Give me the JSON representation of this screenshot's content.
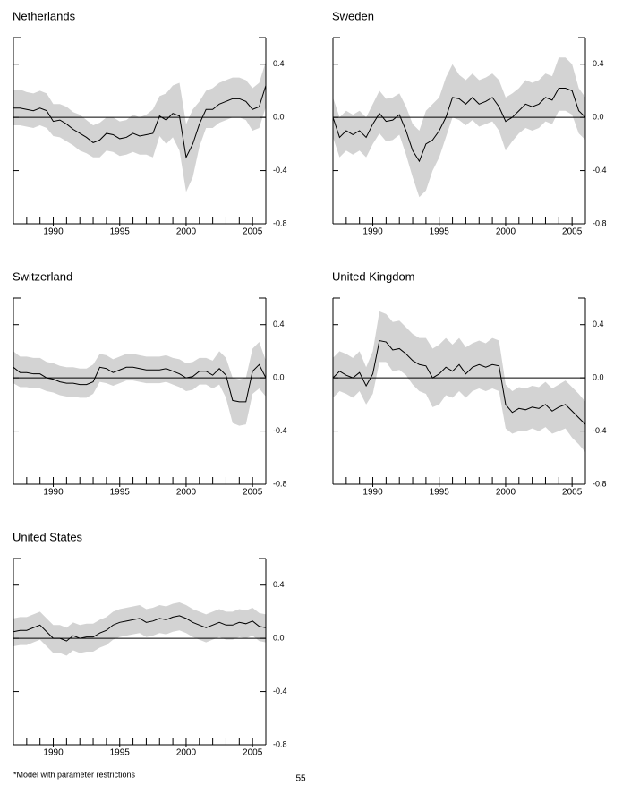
{
  "chart_data": [
    {
      "type": "line",
      "title": "Netherlands",
      "x": [
        1987,
        1987.5,
        1988,
        1988.5,
        1989,
        1989.5,
        1990,
        1990.5,
        1991,
        1991.5,
        1992,
        1992.5,
        1993,
        1993.5,
        1994,
        1994.5,
        1995,
        1995.5,
        1996,
        1996.5,
        1997,
        1997.5,
        1998,
        1998.5,
        1999,
        1999.5,
        2000,
        2000.5,
        2001,
        2001.5,
        2002,
        2002.5,
        2003,
        2003.5,
        2004,
        2004.5,
        2005,
        2005.5,
        2006
      ],
      "series": [
        {
          "color": "#000000",
          "values": [
            0.07,
            0.07,
            0.06,
            0.05,
            0.07,
            0.05,
            -0.03,
            -0.02,
            -0.05,
            -0.09,
            -0.12,
            -0.15,
            -0.19,
            -0.17,
            -0.12,
            -0.13,
            -0.16,
            -0.15,
            -0.12,
            -0.14,
            -0.13,
            -0.12,
            0.01,
            -0.02,
            0.03,
            0.01,
            -0.3,
            -0.2,
            -0.05,
            0.06,
            0.06,
            0.1,
            0.12,
            0.14,
            0.14,
            0.12,
            0.06,
            0.08,
            0.24
          ]
        }
      ],
      "band": {
        "color": "#d3d3d3",
        "lower": [
          -0.06,
          -0.06,
          -0.07,
          -0.08,
          -0.06,
          -0.08,
          -0.14,
          -0.15,
          -0.18,
          -0.21,
          -0.25,
          -0.27,
          -0.3,
          -0.3,
          -0.25,
          -0.26,
          -0.29,
          -0.28,
          -0.26,
          -0.28,
          -0.28,
          -0.3,
          -0.14,
          -0.2,
          -0.15,
          -0.25,
          -0.56,
          -0.45,
          -0.22,
          -0.08,
          -0.08,
          -0.04,
          -0.02,
          0.0,
          0.0,
          -0.02,
          -0.1,
          -0.08,
          0.08
        ],
        "upper": [
          0.21,
          0.21,
          0.19,
          0.18,
          0.2,
          0.18,
          0.1,
          0.1,
          0.08,
          0.04,
          0.02,
          -0.02,
          -0.06,
          -0.04,
          0.0,
          0.0,
          -0.03,
          -0.02,
          0.02,
          0.0,
          0.02,
          0.06,
          0.16,
          0.18,
          0.24,
          0.26,
          -0.05,
          0.06,
          0.12,
          0.2,
          0.22,
          0.26,
          0.28,
          0.3,
          0.3,
          0.28,
          0.22,
          0.26,
          0.42
        ]
      },
      "xlim": [
        1987,
        2006
      ],
      "xticks": [
        1990,
        1995,
        2000,
        2005
      ],
      "xminorticks": [
        1988,
        1989,
        1990,
        1991,
        1992,
        1993,
        1994,
        1995,
        1996,
        1997,
        1998,
        1999,
        2000,
        2001,
        2002,
        2003,
        2004,
        2005
      ],
      "ylim": [
        -0.8,
        0.6
      ],
      "yticks": [
        {
          "value": -0.8,
          "label": "-0.8"
        },
        {
          "value": -0.4,
          "label": "-0.4"
        },
        {
          "value": 0,
          "label": "0.0"
        },
        {
          "value": 0.4,
          "label": "0.4"
        }
      ],
      "zero_line": 0
    },
    {
      "type": "line",
      "title": "Sweden",
      "x": [
        1987,
        1987.5,
        1988,
        1988.5,
        1989,
        1989.5,
        1990,
        1990.5,
        1991,
        1991.5,
        1992,
        1992.5,
        1993,
        1993.5,
        1994,
        1994.5,
        1995,
        1995.5,
        1996,
        1996.5,
        1997,
        1997.5,
        1998,
        1998.5,
        1999,
        1999.5,
        2000,
        2000.5,
        2001,
        2001.5,
        2002,
        2002.5,
        2003,
        2003.5,
        2004,
        2004.5,
        2005,
        2005.5,
        2006
      ],
      "series": [
        {
          "color": "#000000",
          "values": [
            0.0,
            -0.15,
            -0.1,
            -0.13,
            -0.1,
            -0.15,
            -0.05,
            0.03,
            -0.03,
            -0.02,
            0.02,
            -0.1,
            -0.25,
            -0.33,
            -0.2,
            -0.17,
            -0.1,
            0.0,
            0.15,
            0.14,
            0.1,
            0.15,
            0.1,
            0.12,
            0.15,
            0.08,
            -0.03,
            0.0,
            0.05,
            0.1,
            0.08,
            0.1,
            0.15,
            0.13,
            0.22,
            0.22,
            0.2,
            0.05,
            0.0
          ]
        }
      ],
      "band": {
        "color": "#d3d3d3",
        "lower": [
          -0.15,
          -0.3,
          -0.25,
          -0.28,
          -0.25,
          -0.3,
          -0.2,
          -0.12,
          -0.18,
          -0.17,
          -0.13,
          -0.28,
          -0.45,
          -0.6,
          -0.55,
          -0.4,
          -0.3,
          -0.15,
          0.0,
          -0.02,
          -0.06,
          -0.02,
          -0.07,
          -0.05,
          -0.03,
          -0.1,
          -0.25,
          -0.18,
          -0.12,
          -0.08,
          -0.1,
          -0.08,
          -0.03,
          -0.05,
          0.05,
          0.05,
          0.02,
          -0.12,
          -0.17
        ],
        "upper": [
          0.15,
          0.0,
          0.05,
          0.02,
          0.05,
          0.0,
          0.1,
          0.2,
          0.14,
          0.15,
          0.18,
          0.08,
          -0.05,
          -0.1,
          0.05,
          0.1,
          0.15,
          0.3,
          0.4,
          0.32,
          0.28,
          0.33,
          0.28,
          0.3,
          0.33,
          0.28,
          0.15,
          0.18,
          0.22,
          0.28,
          0.26,
          0.28,
          0.33,
          0.31,
          0.45,
          0.45,
          0.4,
          0.22,
          0.15
        ]
      },
      "xlim": [
        1987,
        2006
      ],
      "xticks": [
        1990,
        1995,
        2000,
        2005
      ],
      "xminorticks": [
        1988,
        1989,
        1990,
        1991,
        1992,
        1993,
        1994,
        1995,
        1996,
        1997,
        1998,
        1999,
        2000,
        2001,
        2002,
        2003,
        2004,
        2005
      ],
      "ylim": [
        -0.8,
        0.6
      ],
      "yticks": [
        {
          "value": -0.8,
          "label": "-0.8"
        },
        {
          "value": -0.4,
          "label": "-0.4"
        },
        {
          "value": 0,
          "label": "0.0"
        },
        {
          "value": 0.4,
          "label": "0.4"
        }
      ],
      "zero_line": 0
    },
    {
      "type": "line",
      "title": "Switzerland",
      "x": [
        1987,
        1987.5,
        1988,
        1988.5,
        1989,
        1989.5,
        1990,
        1990.5,
        1991,
        1991.5,
        1992,
        1992.5,
        1993,
        1993.5,
        1994,
        1994.5,
        1995,
        1995.5,
        1996,
        1996.5,
        1997,
        1997.5,
        1998,
        1998.5,
        1999,
        1999.5,
        2000,
        2000.5,
        2001,
        2001.5,
        2002,
        2002.5,
        2003,
        2003.5,
        2004,
        2004.5,
        2005,
        2005.5,
        2006
      ],
      "series": [
        {
          "color": "#000000",
          "values": [
            0.08,
            0.04,
            0.04,
            0.03,
            0.03,
            0.0,
            -0.01,
            -0.03,
            -0.04,
            -0.04,
            -0.05,
            -0.05,
            -0.03,
            0.08,
            0.07,
            0.04,
            0.06,
            0.08,
            0.08,
            0.07,
            0.06,
            0.06,
            0.06,
            0.07,
            0.05,
            0.03,
            0.0,
            0.01,
            0.05,
            0.05,
            0.02,
            0.07,
            0.02,
            -0.17,
            -0.18,
            -0.18,
            0.05,
            0.1,
            0.0
          ]
        }
      ],
      "band": {
        "color": "#d3d3d3",
        "lower": [
          -0.04,
          -0.07,
          -0.07,
          -0.08,
          -0.08,
          -0.1,
          -0.11,
          -0.13,
          -0.14,
          -0.14,
          -0.15,
          -0.15,
          -0.12,
          -0.03,
          -0.04,
          -0.06,
          -0.04,
          -0.02,
          -0.02,
          -0.03,
          -0.04,
          -0.04,
          -0.04,
          -0.03,
          -0.05,
          -0.07,
          -0.1,
          -0.09,
          -0.05,
          -0.05,
          -0.08,
          -0.05,
          -0.15,
          -0.34,
          -0.36,
          -0.35,
          -0.12,
          -0.08,
          -0.14
        ],
        "upper": [
          0.2,
          0.16,
          0.16,
          0.15,
          0.15,
          0.12,
          0.11,
          0.09,
          0.08,
          0.08,
          0.07,
          0.07,
          0.1,
          0.18,
          0.17,
          0.14,
          0.16,
          0.18,
          0.18,
          0.17,
          0.16,
          0.16,
          0.16,
          0.17,
          0.15,
          0.14,
          0.11,
          0.12,
          0.15,
          0.15,
          0.13,
          0.2,
          0.15,
          0.0,
          -0.01,
          0.0,
          0.22,
          0.27,
          0.13
        ]
      },
      "xlim": [
        1987,
        2006
      ],
      "xticks": [
        1990,
        1995,
        2000,
        2005
      ],
      "xminorticks": [
        1988,
        1989,
        1990,
        1991,
        1992,
        1993,
        1994,
        1995,
        1996,
        1997,
        1998,
        1999,
        2000,
        2001,
        2002,
        2003,
        2004,
        2005
      ],
      "ylim": [
        -0.8,
        0.6
      ],
      "yticks": [
        {
          "value": -0.8,
          "label": "-0.8"
        },
        {
          "value": -0.4,
          "label": "-0.4"
        },
        {
          "value": 0,
          "label": "0.0"
        },
        {
          "value": 0.4,
          "label": "0.4"
        }
      ],
      "zero_line": 0
    },
    {
      "type": "line",
      "title": "United Kingdom",
      "x": [
        1987,
        1987.5,
        1988,
        1988.5,
        1989,
        1989.5,
        1990,
        1990.5,
        1991,
        1991.5,
        1992,
        1992.5,
        1993,
        1993.5,
        1994,
        1994.5,
        1995,
        1995.5,
        1996,
        1996.5,
        1997,
        1997.5,
        1998,
        1998.5,
        1999,
        1999.5,
        2000,
        2000.5,
        2001,
        2001.5,
        2002,
        2002.5,
        2003,
        2003.5,
        2004,
        2004.5,
        2005,
        2005.5,
        2006
      ],
      "series": [
        {
          "color": "#000000",
          "values": [
            0.0,
            0.05,
            0.02,
            0.0,
            0.04,
            -0.06,
            0.03,
            0.28,
            0.27,
            0.21,
            0.22,
            0.18,
            0.13,
            0.1,
            0.09,
            0.0,
            0.03,
            0.08,
            0.05,
            0.1,
            0.03,
            0.08,
            0.1,
            0.08,
            0.1,
            0.09,
            -0.2,
            -0.26,
            -0.23,
            -0.24,
            -0.22,
            -0.23,
            -0.2,
            -0.25,
            -0.22,
            -0.2,
            -0.25,
            -0.3,
            -0.35
          ]
        }
      ],
      "band": {
        "color": "#d3d3d3",
        "lower": [
          -0.15,
          -0.1,
          -0.12,
          -0.15,
          -0.1,
          -0.2,
          -0.12,
          0.12,
          0.12,
          0.05,
          0.06,
          0.02,
          -0.05,
          -0.1,
          -0.12,
          -0.22,
          -0.2,
          -0.13,
          -0.15,
          -0.1,
          -0.15,
          -0.1,
          -0.08,
          -0.1,
          -0.08,
          -0.1,
          -0.38,
          -0.42,
          -0.4,
          -0.4,
          -0.38,
          -0.4,
          -0.37,
          -0.42,
          -0.4,
          -0.38,
          -0.45,
          -0.5,
          -0.56
        ],
        "upper": [
          0.15,
          0.2,
          0.18,
          0.15,
          0.2,
          0.08,
          0.2,
          0.5,
          0.48,
          0.42,
          0.43,
          0.38,
          0.33,
          0.3,
          0.3,
          0.22,
          0.25,
          0.3,
          0.25,
          0.3,
          0.23,
          0.26,
          0.28,
          0.26,
          0.3,
          0.28,
          -0.05,
          -0.1,
          -0.07,
          -0.08,
          -0.06,
          -0.07,
          -0.03,
          -0.08,
          -0.05,
          -0.02,
          -0.07,
          -0.12,
          -0.18
        ]
      },
      "xlim": [
        1987,
        2006
      ],
      "xticks": [
        1990,
        1995,
        2000,
        2005
      ],
      "xminorticks": [
        1988,
        1989,
        1990,
        1991,
        1992,
        1993,
        1994,
        1995,
        1996,
        1997,
        1998,
        1999,
        2000,
        2001,
        2002,
        2003,
        2004,
        2005
      ],
      "ylim": [
        -0.8,
        0.6
      ],
      "yticks": [
        {
          "value": -0.8,
          "label": "-0.8"
        },
        {
          "value": -0.4,
          "label": "-0.4"
        },
        {
          "value": 0,
          "label": "0.0"
        },
        {
          "value": 0.4,
          "label": "0.4"
        }
      ],
      "zero_line": 0
    },
    {
      "type": "line",
      "title": "United States",
      "x": [
        1987,
        1987.5,
        1988,
        1988.5,
        1989,
        1989.5,
        1990,
        1990.5,
        1991,
        1991.5,
        1992,
        1992.5,
        1993,
        1993.5,
        1994,
        1994.5,
        1995,
        1995.5,
        1996,
        1996.5,
        1997,
        1997.5,
        1998,
        1998.5,
        1999,
        1999.5,
        2000,
        2000.5,
        2001,
        2001.5,
        2002,
        2002.5,
        2003,
        2003.5,
        2004,
        2004.5,
        2005,
        2005.5,
        2006
      ],
      "series": [
        {
          "color": "#000000",
          "values": [
            0.05,
            0.06,
            0.06,
            0.08,
            0.1,
            0.05,
            0.0,
            0.0,
            -0.02,
            0.02,
            0.0,
            0.01,
            0.01,
            0.04,
            0.06,
            0.1,
            0.12,
            0.13,
            0.14,
            0.15,
            0.12,
            0.13,
            0.15,
            0.14,
            0.16,
            0.17,
            0.15,
            0.12,
            0.1,
            0.08,
            0.1,
            0.12,
            0.1,
            0.1,
            0.12,
            0.11,
            0.13,
            0.09,
            0.08
          ]
        }
      ],
      "band": {
        "color": "#d3d3d3",
        "lower": [
          -0.06,
          -0.05,
          -0.05,
          -0.03,
          -0.01,
          -0.06,
          -0.11,
          -0.11,
          -0.13,
          -0.09,
          -0.11,
          -0.1,
          -0.1,
          -0.07,
          -0.05,
          -0.01,
          0.01,
          0.02,
          0.03,
          0.04,
          0.01,
          0.02,
          0.04,
          0.03,
          0.05,
          0.06,
          0.04,
          0.01,
          -0.01,
          -0.03,
          -0.01,
          0.01,
          -0.01,
          -0.01,
          0.01,
          0.0,
          0.02,
          -0.02,
          -0.03
        ],
        "upper": [
          0.15,
          0.16,
          0.16,
          0.18,
          0.2,
          0.15,
          0.1,
          0.1,
          0.08,
          0.12,
          0.1,
          0.11,
          0.11,
          0.14,
          0.16,
          0.2,
          0.22,
          0.23,
          0.24,
          0.25,
          0.22,
          0.23,
          0.25,
          0.24,
          0.26,
          0.27,
          0.25,
          0.22,
          0.2,
          0.18,
          0.2,
          0.22,
          0.2,
          0.2,
          0.22,
          0.21,
          0.23,
          0.19,
          0.18
        ]
      },
      "xlim": [
        1987,
        2006
      ],
      "xticks": [
        1990,
        1995,
        2000,
        2005
      ],
      "xminorticks": [
        1988,
        1989,
        1990,
        1991,
        1992,
        1993,
        1994,
        1995,
        1996,
        1997,
        1998,
        1999,
        2000,
        2001,
        2002,
        2003,
        2004,
        2005
      ],
      "ylim": [
        -0.8,
        0.6
      ],
      "yticks": [
        {
          "value": -0.8,
          "label": "-0.8"
        },
        {
          "value": -0.4,
          "label": "-0.4"
        },
        {
          "value": 0,
          "label": "0.0"
        },
        {
          "value": 0.4,
          "label": "0.4"
        }
      ],
      "zero_line": 0
    }
  ],
  "footnote": "*Model with parameter restrictions",
  "page_number": "55"
}
